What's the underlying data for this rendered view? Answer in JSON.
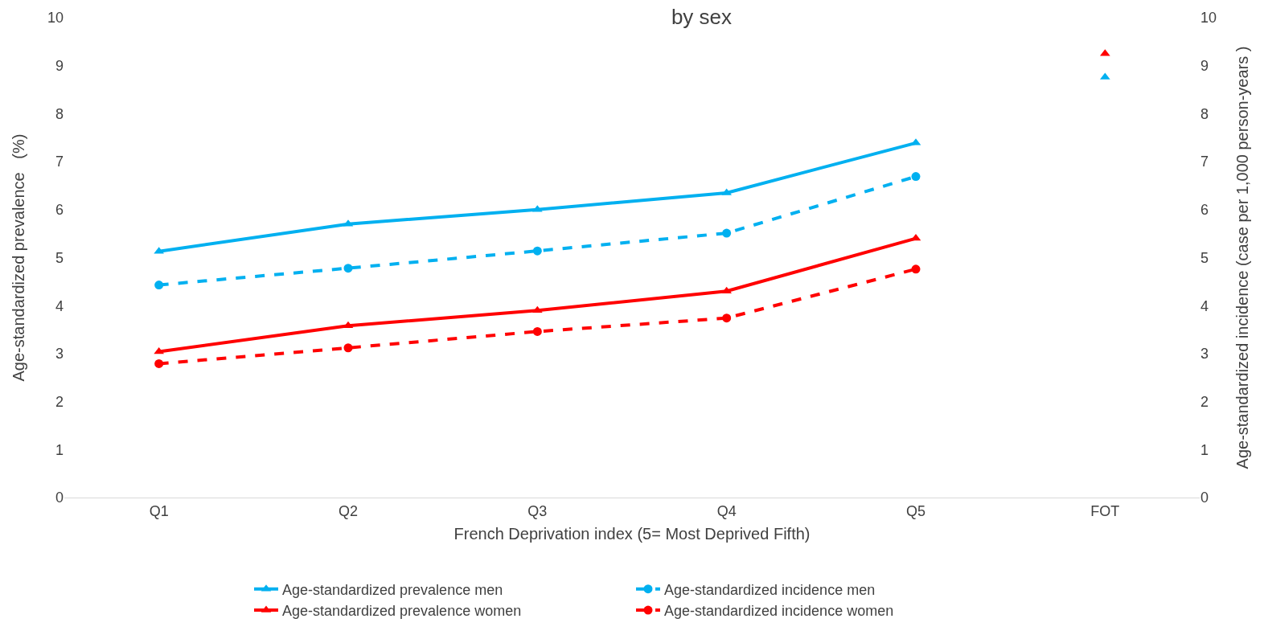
{
  "chart_data": {
    "type": "line",
    "title": "by sex",
    "xlabel": "French Deprivation index (5= Most Deprived Fifth)",
    "ylabel": "Age-standardized prevalence   (%)",
    "y2label": "Age-standardized incidence (case per 1,000 person-years )",
    "categories": [
      "Q1",
      "Q2",
      "Q3",
      "Q4",
      "Q5",
      "FOT"
    ],
    "series": [
      {
        "name": "Age-standardized prevalence men",
        "color": "#00b0f0",
        "marker": "triangle",
        "line_style": "solid",
        "values": [
          5.13,
          5.7,
          6.0,
          6.35,
          7.39,
          null
        ]
      },
      {
        "name": "Age-standardized incidence men",
        "color": "#00b0f0",
        "marker": "circle",
        "line_style": "dashed",
        "axis": "y2",
        "values": [
          4.43,
          4.78,
          5.14,
          5.51,
          6.69,
          null
        ]
      },
      {
        "name": "Age-standardized prevalence women",
        "color": "#ff0000",
        "marker": "triangle",
        "line_style": "solid",
        "values": [
          3.04,
          3.58,
          3.9,
          4.3,
          5.4,
          null
        ]
      },
      {
        "name": "Age-standardized incidence women",
        "color": "#ff0000",
        "marker": "circle",
        "line_style": "dashed",
        "axis": "y2",
        "values": [
          2.79,
          3.12,
          3.46,
          3.74,
          4.76,
          null
        ]
      },
      {
        "type": "scatter",
        "color": "#ff0000",
        "marker": "triangle",
        "x": [
          "FOT"
        ],
        "values": [
          9.25
        ]
      },
      {
        "type": "scatter",
        "color": "#00b0f0",
        "marker": "triangle",
        "x": [
          "FOT"
        ],
        "values": [
          8.76
        ]
      }
    ],
    "ylim": [
      0,
      10
    ],
    "yticks": [
      0,
      1,
      2,
      3,
      4,
      5,
      6,
      7,
      8,
      9,
      10
    ],
    "y2lim": [
      0,
      10
    ],
    "y2ticks": [
      0,
      1,
      2,
      3,
      4,
      5,
      6,
      7,
      8,
      9,
      10
    ],
    "grid": false,
    "legend": "bottom"
  }
}
